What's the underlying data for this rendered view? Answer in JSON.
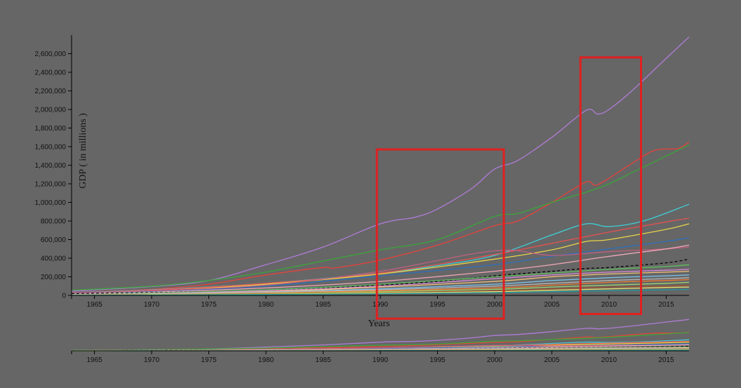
{
  "chart_data": {
    "type": "line",
    "title": "",
    "xlabel": "Years",
    "ylabel": "GDP ( in millions )",
    "xlim": [
      1963,
      2017
    ],
    "ylim": [
      0,
      2800000
    ],
    "x_ticks": [
      "1965",
      "1970",
      "1975",
      "1980",
      "1985",
      "1990",
      "1995",
      "2000",
      "2005",
      "2010",
      "2015"
    ],
    "y_ticks": [
      "0",
      "200,000",
      "400,000",
      "600,000",
      "800,000",
      "1,000,000",
      "1,200,000",
      "1,400,000",
      "1,600,000",
      "1,800,000",
      "2,000,000",
      "2,200,000",
      "2,400,000",
      "2,600,000"
    ],
    "grid": false,
    "legend": "none",
    "brush_context": {
      "x_ticks": [
        "1965",
        "1970",
        "1975",
        "1980",
        "1985",
        "1990",
        "1995",
        "2000",
        "2005",
        "2010",
        "2015"
      ]
    },
    "highlight_boxes": [
      {
        "x_range": [
          1989.7,
          2000.8
        ],
        "y_range": [
          -250000,
          1570000
        ],
        "color": "#e02020"
      },
      {
        "x_range": [
          2007.5,
          2012.8
        ],
        "y_range": [
          -200000,
          2560000
        ],
        "color": "#e02020"
      }
    ],
    "series": [
      {
        "color": "#b07cd8",
        "dash": false,
        "x": [
          1963,
          1970,
          1975,
          1980,
          1985,
          1990,
          1993,
          1995,
          1998,
          2000,
          2002,
          2005,
          2008,
          2009,
          2010,
          2012,
          2015,
          2017
        ],
        "y": [
          45000,
          95000,
          160000,
          330000,
          520000,
          770000,
          840000,
          930000,
          1150000,
          1360000,
          1450000,
          1700000,
          1990000,
          1950000,
          2000000,
          2200000,
          2550000,
          2780000
        ]
      },
      {
        "color": "#e8423a",
        "dash": false,
        "x": [
          1963,
          1970,
          1975,
          1980,
          1985,
          1986,
          1990,
          1995,
          2000,
          2002,
          2005,
          2008,
          2009,
          2012,
          2014,
          2016,
          2017
        ],
        "y": [
          30000,
          65000,
          120000,
          220000,
          300000,
          295000,
          380000,
          540000,
          750000,
          800000,
          1000000,
          1220000,
          1190000,
          1420000,
          1560000,
          1580000,
          1650000
        ]
      },
      {
        "color": "#3aa63a",
        "dash": false,
        "x": [
          1963,
          1970,
          1975,
          1980,
          1985,
          1990,
          1995,
          2000,
          2002,
          2005,
          2008,
          2010,
          2012,
          2015,
          2017
        ],
        "y": [
          55000,
          100000,
          160000,
          250000,
          370000,
          490000,
          600000,
          850000,
          880000,
          1000000,
          1110000,
          1200000,
          1320000,
          1500000,
          1620000
        ]
      },
      {
        "color": "#3ecfd8",
        "dash": false,
        "x": [
          1963,
          1970,
          1980,
          1990,
          1995,
          2000,
          2005,
          2008,
          2010,
          2013,
          2017
        ],
        "y": [
          30000,
          60000,
          130000,
          240000,
          320000,
          430000,
          650000,
          770000,
          740000,
          800000,
          980000
        ]
      },
      {
        "color": "#e85050",
        "dash": false,
        "x": [
          1963,
          1970,
          1980,
          1990,
          2000,
          2005,
          2010,
          2015,
          2017
        ],
        "y": [
          25000,
          55000,
          130000,
          240000,
          440000,
          560000,
          680000,
          790000,
          830000
        ]
      },
      {
        "color": "#e8d34a",
        "dash": false,
        "x": [
          1963,
          1970,
          1980,
          1990,
          2000,
          2005,
          2008,
          2010,
          2015,
          2017
        ],
        "y": [
          20000,
          45000,
          120000,
          230000,
          390000,
          490000,
          580000,
          600000,
          710000,
          770000
        ]
      },
      {
        "color": "#2f6fb8",
        "dash": false,
        "x": [
          1963,
          1970,
          1980,
          1990,
          2000,
          2005,
          2010,
          2015,
          2017
        ],
        "y": [
          20000,
          40000,
          100000,
          210000,
          330000,
          420000,
          500000,
          580000,
          620000
        ]
      },
      {
        "color": "#c06080",
        "dash": false,
        "x": [
          1963,
          1970,
          1980,
          1990,
          2000,
          2005,
          2010,
          2015,
          2017
        ],
        "y": [
          30000,
          50000,
          110000,
          260000,
          480000,
          430000,
          470000,
          500000,
          520000
        ]
      },
      {
        "color": "#f0a8b8",
        "dash": false,
        "x": [
          1963,
          1970,
          1980,
          1990,
          2000,
          2005,
          2010,
          2015,
          2017
        ],
        "y": [
          15000,
          35000,
          80000,
          150000,
          260000,
          330000,
          420000,
          500000,
          540000
        ]
      },
      {
        "color": "#000000",
        "dash": true,
        "x": [
          1963,
          1970,
          1980,
          1985,
          1990,
          1995,
          2000,
          2005,
          2008,
          2010,
          2015,
          2017
        ],
        "y": [
          20000,
          30000,
          55000,
          80000,
          110000,
          150000,
          210000,
          260000,
          290000,
          300000,
          350000,
          390000
        ]
      },
      {
        "color": "#5fbf5f",
        "dash": false,
        "x": [
          1963,
          1970,
          1980,
          1990,
          2000,
          2005,
          2010,
          2015,
          2017
        ],
        "y": [
          10000,
          25000,
          60000,
          120000,
          200000,
          240000,
          280000,
          310000,
          330000
        ]
      },
      {
        "color": "#d88ad8",
        "dash": false,
        "x": [
          1963,
          1970,
          1980,
          1990,
          2000,
          2005,
          2010,
          2015,
          2017
        ],
        "y": [
          10000,
          20000,
          50000,
          100000,
          180000,
          220000,
          250000,
          270000,
          280000
        ]
      },
      {
        "color": "#f2c27a",
        "dash": false,
        "x": [
          1963,
          1970,
          1980,
          1990,
          2000,
          2005,
          2010,
          2015,
          2017
        ],
        "y": [
          8000,
          18000,
          40000,
          90000,
          150000,
          200000,
          230000,
          250000,
          260000
        ]
      },
      {
        "color": "#7cc0e8",
        "dash": false,
        "x": [
          1963,
          1970,
          1980,
          1990,
          2000,
          2005,
          2010,
          2015,
          2017
        ],
        "y": [
          8000,
          15000,
          35000,
          70000,
          120000,
          160000,
          190000,
          210000,
          220000
        ]
      },
      {
        "color": "#b8b8b8",
        "dash": false,
        "x": [
          1963,
          1970,
          1980,
          1990,
          2000,
          2005,
          2010,
          2015,
          2017
        ],
        "y": [
          6000,
          12000,
          30000,
          60000,
          100000,
          130000,
          160000,
          180000,
          190000
        ]
      },
      {
        "color": "#f27a2e",
        "dash": false,
        "x": [
          1963,
          1970,
          1980,
          1990,
          2000,
          2005,
          2010,
          2015,
          2017
        ],
        "y": [
          5000,
          10000,
          25000,
          50000,
          80000,
          110000,
          140000,
          160000,
          170000
        ]
      },
      {
        "color": "#9ed66f",
        "dash": false,
        "x": [
          1963,
          1970,
          1980,
          1990,
          2000,
          2005,
          2010,
          2015,
          2017
        ],
        "y": [
          4000,
          9000,
          20000,
          40000,
          65000,
          90000,
          110000,
          130000,
          140000
        ]
      },
      {
        "color": "#a0522d",
        "dash": false,
        "x": [
          1963,
          1970,
          1980,
          1990,
          2000,
          2005,
          2010,
          2015,
          2017
        ],
        "y": [
          3000,
          7000,
          16000,
          30000,
          50000,
          70000,
          90000,
          100000,
          110000
        ]
      },
      {
        "color": "#e6e070",
        "dash": false,
        "x": [
          1963,
          1970,
          1980,
          1990,
          2000,
          2005,
          2010,
          2015,
          2017
        ],
        "y": [
          2000,
          5000,
          12000,
          25000,
          40000,
          55000,
          70000,
          85000,
          90000
        ]
      },
      {
        "color": "#1f9aa0",
        "dash": false,
        "x": [
          1963,
          1970,
          1980,
          1990,
          2000,
          2005,
          2010,
          2015,
          2017
        ],
        "y": [
          1500,
          4000,
          9000,
          18000,
          30000,
          40000,
          50000,
          60000,
          65000
        ]
      }
    ]
  }
}
